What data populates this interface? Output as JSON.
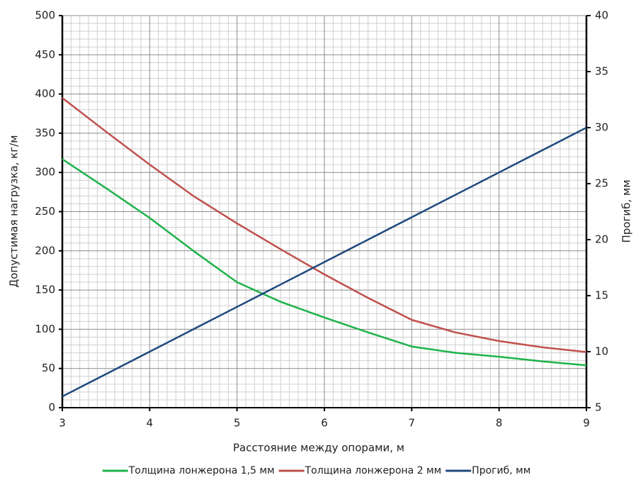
{
  "chart_data": {
    "type": "line",
    "x": [
      3,
      3.5,
      4,
      4.5,
      5,
      5.5,
      6,
      6.5,
      7,
      7.5,
      8,
      8.5,
      9
    ],
    "xlim": [
      3,
      9
    ],
    "xticks": [
      3,
      4,
      5,
      6,
      7,
      8,
      9
    ],
    "ylim": [
      0,
      500
    ],
    "yticks": [
      0,
      50,
      100,
      150,
      200,
      250,
      300,
      350,
      400,
      450,
      500
    ],
    "y2lim": [
      5,
      40
    ],
    "y2ticks": [
      5,
      10,
      15,
      20,
      25,
      30,
      35,
      40
    ],
    "xlabel": "Расстояние между опорами, м",
    "ylabel": "Допустимая нагрузка, кг/м",
    "y2label": "Прогиб, мм",
    "grid": true,
    "series": [
      {
        "name": "Толщина лонжерона 1,5 мм",
        "color": "#1db34a",
        "values": [
          317,
          280,
          242,
          200,
          160,
          135,
          115,
          96,
          78,
          70,
          65,
          59,
          54
        ]
      },
      {
        "name": "Толщина лонжерона 2 мм",
        "color": "#c0504d",
        "values": [
          395,
          352,
          310,
          270,
          235,
          202,
          170,
          140,
          112,
          96,
          85,
          77,
          71
        ]
      },
      {
        "name": "Прогиб, мм",
        "color": "#1f497d",
        "axis": "y2",
        "values": [
          6,
          8,
          10,
          12,
          14,
          16,
          18,
          20,
          22,
          24,
          26,
          28,
          30
        ]
      }
    ]
  }
}
